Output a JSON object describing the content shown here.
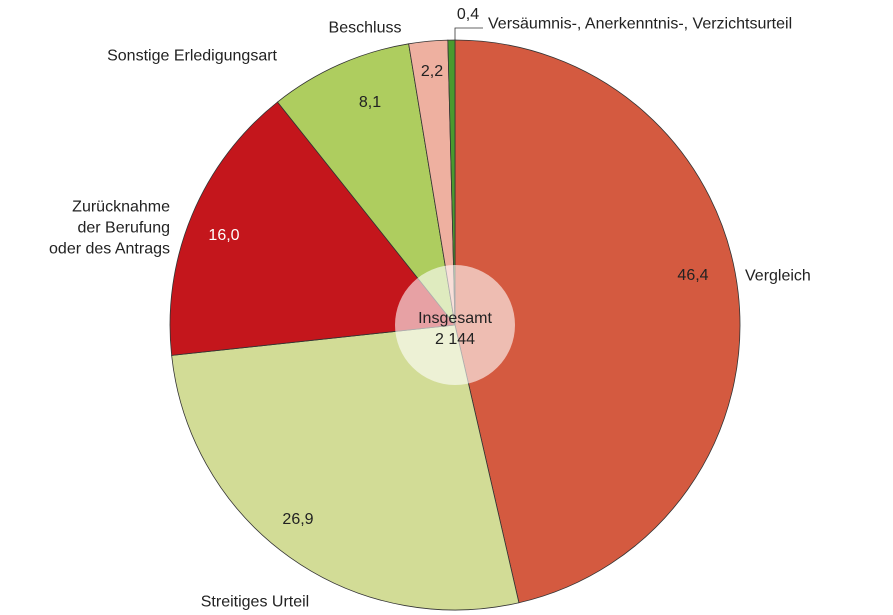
{
  "chart_data": {
    "type": "pie",
    "categories": [
      "Vergleich",
      "Streitiges Urteil",
      "Zurücknahme\nder Berufung\noder des Antrags",
      "Sonstige Erledigungsart",
      "Beschluss",
      "Versäumnis-, Anerkenntnis-, Verzichtsurteil"
    ],
    "values": [
      46.4,
      26.9,
      16.0,
      8.1,
      2.2,
      0.4
    ],
    "value_labels": [
      "46,4",
      "26,9",
      "16,0",
      "8,1",
      "2,2",
      "0,4"
    ],
    "colors": [
      "#d45a40",
      "#d2dc96",
      "#c4161c",
      "#aecd5f",
      "#eeb0a0",
      "#4a9a2e"
    ],
    "center_text": [
      "Insgesamt",
      "2 144"
    ]
  }
}
